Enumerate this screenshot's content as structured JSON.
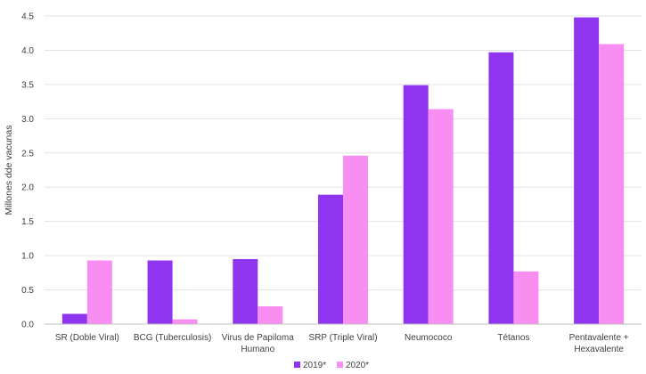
{
  "chart_data": {
    "type": "bar",
    "title": "",
    "xlabel": "",
    "ylabel": "Millones dde vacunas",
    "ylim": [
      0,
      4.5
    ],
    "yticks": [
      "0.0",
      "0.5",
      "1.0",
      "1.5",
      "2.0",
      "2.5",
      "3.0",
      "3.5",
      "4.0",
      "4.5"
    ],
    "grid": true,
    "legend_position": "bottom",
    "categories": [
      [
        "SR (Doble Viral)"
      ],
      [
        "BCG (Tuberculosis)"
      ],
      [
        "Virus de Papiloma",
        "Humano"
      ],
      [
        "SRP (Triple Viral)"
      ],
      [
        "Neumococo"
      ],
      [
        "Tétanos"
      ],
      [
        "Pentavalente +",
        "Hexavalente"
      ]
    ],
    "series": [
      {
        "name": "2019*",
        "color": "#8f35f0",
        "values": [
          0.15,
          0.93,
          0.95,
          1.89,
          3.49,
          3.97,
          4.48
        ]
      },
      {
        "name": "2020*",
        "color": "#f98ef2",
        "values": [
          0.93,
          0.07,
          0.26,
          2.46,
          3.14,
          0.77,
          4.09
        ]
      }
    ]
  }
}
